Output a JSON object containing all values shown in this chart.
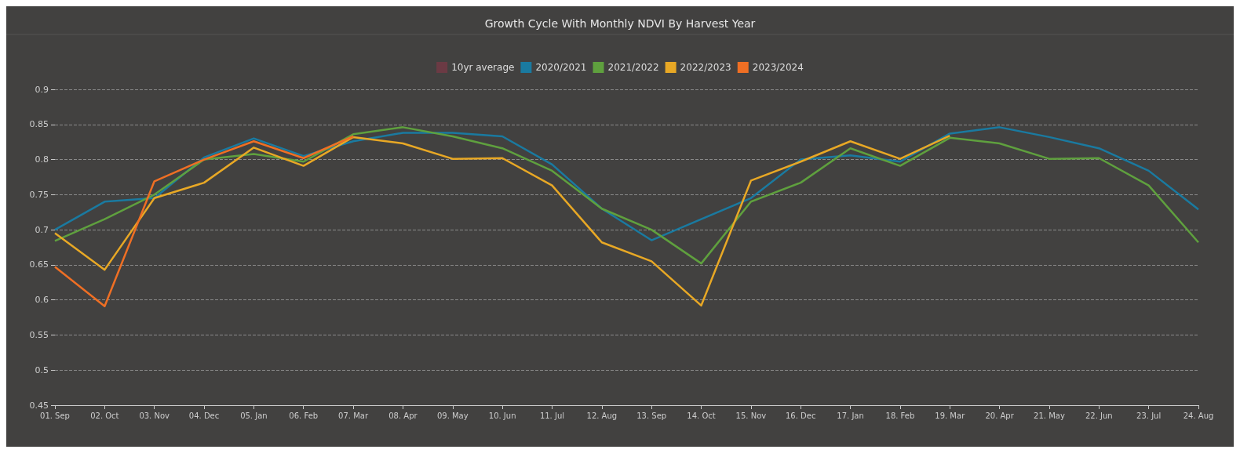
{
  "chart_data": {
    "type": "line",
    "title": "Growth Cycle With Monthly NDVI By Harvest Year",
    "categories": [
      "01. Sep",
      "02. Oct",
      "03. Nov",
      "04. Dec",
      "05. Jan",
      "06. Feb",
      "07. Mar",
      "08. Apr",
      "09. May",
      "10. Jun",
      "11. Jul",
      "12. Aug",
      "13. Sep",
      "14. Oct",
      "15. Nov",
      "16. Dec",
      "17. Jan",
      "18. Feb",
      "19. Mar",
      "20. Apr",
      "21. May",
      "22. Jun",
      "23. Jul",
      "24. Aug"
    ],
    "series": [
      {
        "name": "10yr average",
        "color": "#6b3a44",
        "values": [
          null,
          null,
          null,
          null,
          null,
          null,
          null,
          null,
          null,
          null,
          null,
          null,
          null,
          null,
          null,
          null,
          null,
          null,
          null,
          null,
          null,
          null,
          null,
          null
        ]
      },
      {
        "name": "2020/2021",
        "color": "#1a7aa0",
        "values": [
          0.7,
          0.74,
          0.745,
          0.803,
          0.83,
          0.805,
          0.826,
          0.838,
          0.838,
          0.833,
          0.793,
          0.73,
          0.685,
          0.715,
          0.745,
          0.8,
          0.806,
          0.797,
          0.837,
          0.846,
          0.832,
          0.816,
          0.784,
          0.729
        ]
      },
      {
        "name": "2021/2022",
        "color": "#5fa03e",
        "values": [
          0.684,
          0.715,
          0.75,
          0.8,
          0.808,
          0.797,
          0.836,
          0.846,
          0.833,
          0.816,
          0.784,
          0.73,
          0.7,
          0.652,
          0.74,
          0.767,
          0.816,
          0.791,
          0.831,
          0.823,
          0.801,
          0.802,
          0.763,
          0.682
        ]
      },
      {
        "name": "2022/2023",
        "color": "#e8a825",
        "values": [
          0.695,
          0.643,
          0.745,
          0.767,
          0.817,
          0.791,
          0.832,
          0.823,
          0.801,
          0.802,
          0.763,
          0.682,
          0.655,
          0.592,
          0.77,
          0.797,
          0.826,
          0.801,
          0.834,
          null,
          null,
          null,
          null,
          null
        ]
      },
      {
        "name": "2023/2024",
        "color": "#ef6f24",
        "values": [
          0.647,
          0.591,
          0.769,
          0.8,
          0.826,
          0.802,
          0.833,
          null,
          null,
          null,
          null,
          null,
          null,
          null,
          null,
          null,
          null,
          null,
          null,
          null,
          null,
          null,
          null,
          null
        ]
      }
    ],
    "ylim": [
      0.45,
      0.9
    ],
    "yticks": [
      0.45,
      0.5,
      0.55,
      0.6,
      0.65,
      0.7,
      0.75,
      0.8,
      0.85,
      0.9
    ],
    "grid": "y",
    "legend": "top",
    "marker": "none",
    "line_style": "solid"
  }
}
